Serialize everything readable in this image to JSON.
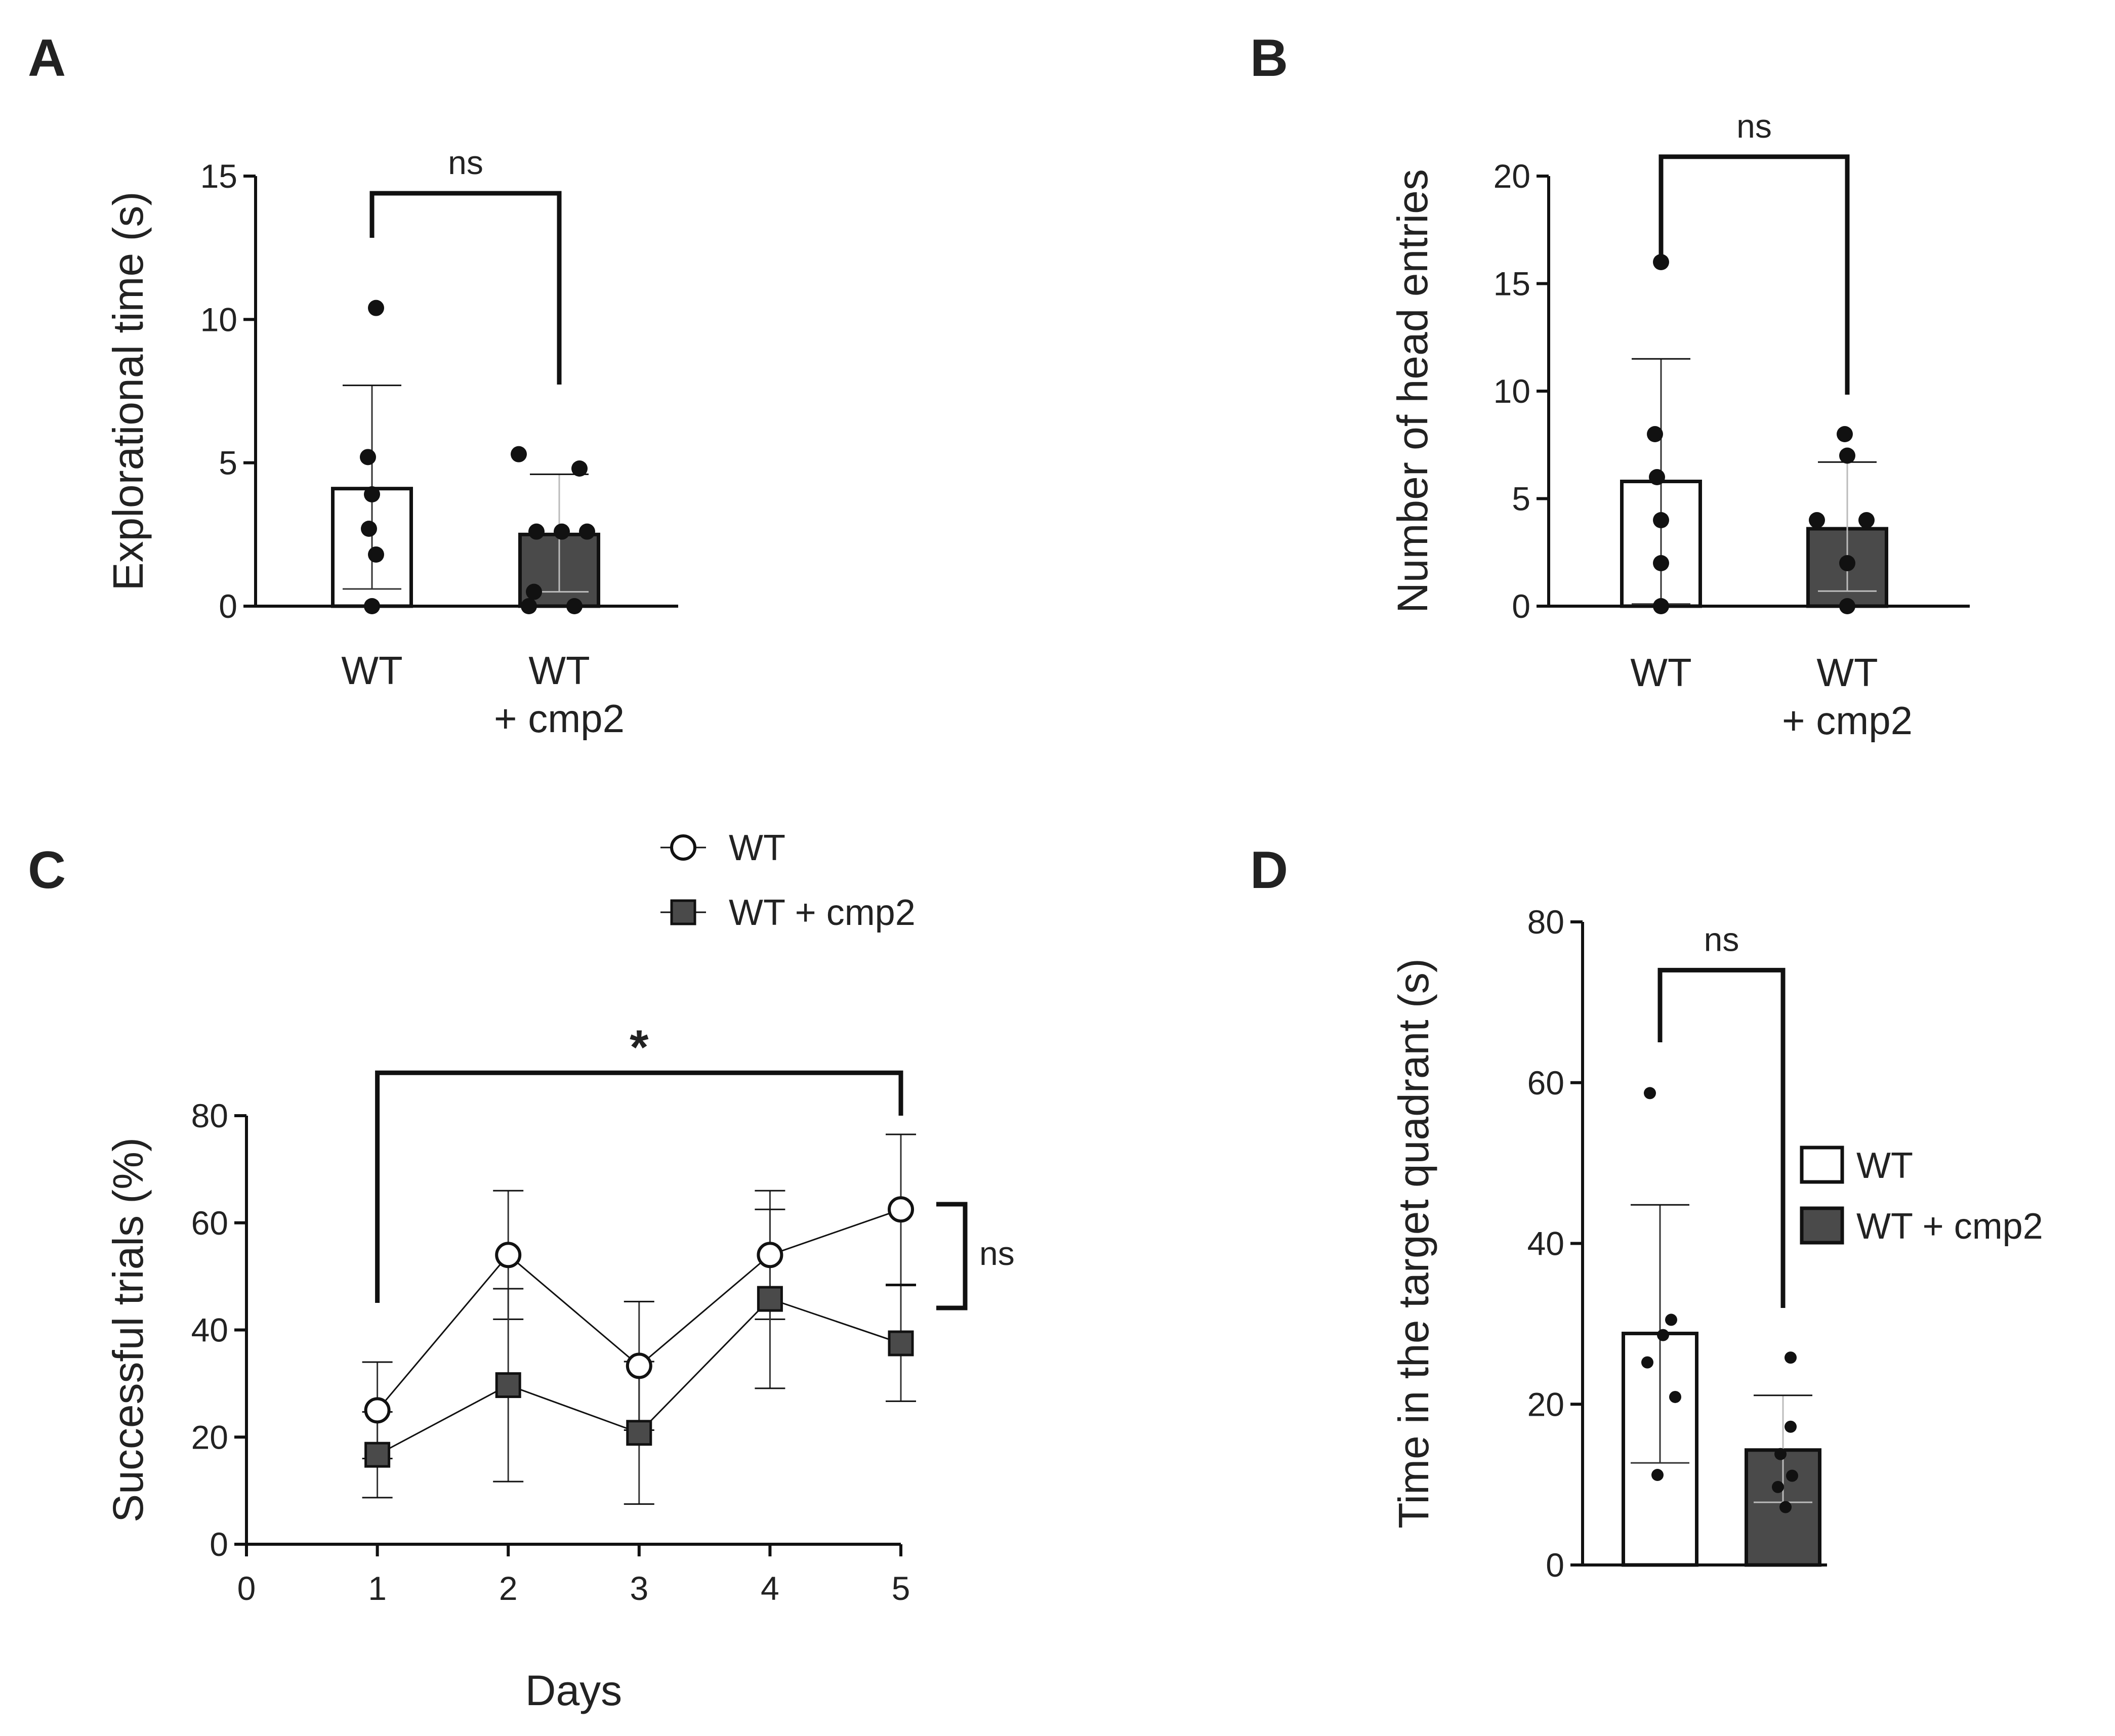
{
  "colors": {
    "ink": "#111111",
    "wt_fill": "#ffffff",
    "cmp2_fill": "#4a4a4a"
  },
  "chart_data": [
    {
      "panel": "A",
      "type": "bar",
      "ylabel": "Explorational time (s)",
      "ylim": [
        0,
        15
      ],
      "yticks": [
        "0",
        "5",
        "10",
        "15"
      ],
      "categories": [
        {
          "line1": "WT",
          "line2": ""
        },
        {
          "line1": "WT",
          "line2": "+ cmp2"
        }
      ],
      "series": [
        {
          "name": "WT",
          "mean": 4.1,
          "err_low": 0.6,
          "err_high": 7.7,
          "points": [
            10.4,
            5.2,
            3.9,
            2.7,
            1.8,
            0.0
          ]
        },
        {
          "name": "WT + cmp2",
          "mean": 2.5,
          "err_low": 0.5,
          "err_high": 4.6,
          "points": [
            5.3,
            4.8,
            2.6,
            2.6,
            2.6,
            0.5,
            0.0,
            0.0
          ]
        }
      ],
      "significance": {
        "label": "ns",
        "y": 14.4
      }
    },
    {
      "panel": "B",
      "type": "bar",
      "ylabel": "Number of head entries",
      "ylim": [
        0,
        20
      ],
      "yticks": [
        "0",
        "5",
        "10",
        "15",
        "20"
      ],
      "categories": [
        {
          "line1": "WT",
          "line2": ""
        },
        {
          "line1": "WT",
          "line2": "+ cmp2"
        }
      ],
      "series": [
        {
          "name": "WT",
          "mean": 5.8,
          "err_low": 0.1,
          "err_high": 11.5,
          "points": [
            16,
            8,
            6,
            4,
            2,
            0
          ]
        },
        {
          "name": "WT + cmp2",
          "mean": 3.6,
          "err_low": 0.7,
          "err_high": 6.7,
          "points": [
            8,
            7,
            4,
            4,
            2,
            0
          ]
        }
      ],
      "significance": {
        "label": "ns",
        "y": 20.9
      }
    },
    {
      "panel": "C",
      "type": "line",
      "xlabel": "Days",
      "ylabel": "Successful trials (%)",
      "xlim": [
        0,
        5
      ],
      "ylim": [
        0,
        80
      ],
      "xticks": [
        "0",
        "1",
        "2",
        "3",
        "4",
        "5"
      ],
      "yticks": [
        "0",
        "20",
        "40",
        "60",
        "80"
      ],
      "x": [
        1,
        2,
        3,
        4,
        5
      ],
      "series": [
        {
          "name": "WT",
          "marker": "circle",
          "values": [
            25,
            54,
            33.3,
            54,
            62.5
          ],
          "err": [
            9,
            12,
            12,
            12,
            14
          ]
        },
        {
          "name": "WT + cmp2",
          "marker": "square",
          "values": [
            16.7,
            29.7,
            20.8,
            45.8,
            37.5
          ],
          "err": [
            8,
            18,
            13.3,
            16.7,
            10.8
          ]
        }
      ],
      "legend": {
        "position": "top",
        "entries": [
          "WT",
          "WT + cmp2"
        ]
      },
      "annotations": [
        {
          "label": "*",
          "type": "bracket",
          "from_day": 1,
          "to_day": 5,
          "y": 88
        },
        {
          "label": "ns",
          "type": "side-bracket",
          "day": 5
        }
      ]
    },
    {
      "panel": "D",
      "type": "bar",
      "ylabel": "Time in the target quadrant (s)",
      "ylim": [
        0,
        80
      ],
      "yticks": [
        "0",
        "20",
        "40",
        "60",
        "80"
      ],
      "categories": [],
      "series": [
        {
          "name": "WT",
          "mean": 28.8,
          "err_low": 12.7,
          "err_high": 44.8,
          "points": [
            58.7,
            30.5,
            28.6,
            25.2,
            20.9,
            11.2
          ]
        },
        {
          "name": "WT + cmp2",
          "mean": 14.3,
          "err_low": 7.8,
          "err_high": 21.1,
          "points": [
            25.8,
            17.2,
            13.8,
            11.1,
            9.7,
            7.2
          ]
        }
      ],
      "significance": {
        "label": "ns",
        "y": 74
      },
      "legend": {
        "position": "right",
        "entries": [
          "WT",
          "WT + cmp2"
        ]
      }
    }
  ]
}
